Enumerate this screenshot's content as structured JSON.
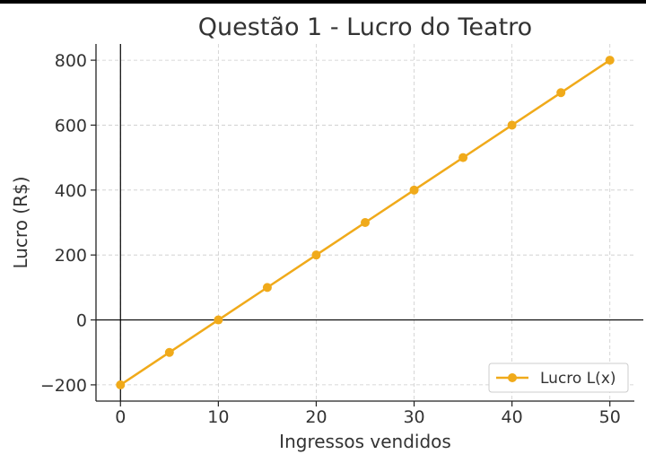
{
  "chart_data": {
    "type": "line",
    "title": "Questão 1 - Lucro do Teatro",
    "xlabel": "Ingressos vendidos",
    "ylabel": "Lucro (R$)",
    "xlim": [
      -2.5,
      52.5
    ],
    "ylim": [
      -250,
      850
    ],
    "xticks": [
      0,
      10,
      20,
      30,
      40,
      50
    ],
    "yticks": [
      -200,
      0,
      200,
      400,
      600,
      800
    ],
    "xtick_labels": [
      "0",
      "10",
      "20",
      "30",
      "40",
      "50"
    ],
    "ytick_labels": [
      "−200",
      "0",
      "200",
      "400",
      "600",
      "800"
    ],
    "grid": true,
    "legend_position": "lower-right",
    "series": [
      {
        "name": "Lucro L(x)",
        "color": "#f0aa1a",
        "marker": "circle",
        "x": [
          0,
          5,
          10,
          15,
          20,
          25,
          30,
          35,
          40,
          45,
          50
        ],
        "y": [
          -200,
          -100,
          0,
          100,
          200,
          300,
          400,
          500,
          600,
          700,
          800
        ]
      }
    ],
    "reference_lines": [
      "x = 0",
      "y = 0"
    ]
  }
}
